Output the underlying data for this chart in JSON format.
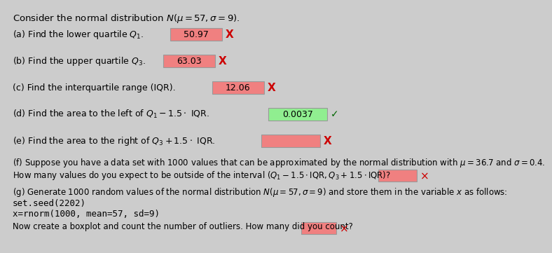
{
  "background_color": "#cccccc",
  "title": "Consider the normal distribution $N(\\mu = 57, \\sigma = 9)$.",
  "items": [
    {
      "prefix": "(a) Find the lower quartile $Q_1$.",
      "answer": "50.97",
      "box_color": "#f08080",
      "check": "X",
      "check_color": "#cc0000",
      "box_width": 0.14
    },
    {
      "prefix": "(b) Find the upper quartile $Q_3$.",
      "answer": "63.03",
      "box_color": "#f08080",
      "check": "X",
      "check_color": "#cc0000",
      "box_width": 0.14
    },
    {
      "prefix": "(c) Find the interquartile range (IQR).",
      "answer": "12.06",
      "box_color": "#f08080",
      "check": "X",
      "check_color": "#cc0000",
      "box_width": 0.14
    },
    {
      "prefix": "(d) Find the area to the left of $Q_1 - 1.5 \\cdot$ IQR.",
      "answer": "0.0037",
      "box_color": "#90ee90",
      "check": "✓",
      "check_color": "#006600",
      "box_width": 0.16
    },
    {
      "prefix": "(e) Find the area to the right of $Q_3 + 1.5 \\cdot$ IQR.",
      "answer": "",
      "box_color": "#f08080",
      "check": "X",
      "check_color": "#cc0000",
      "box_width": 0.16
    }
  ],
  "line_f1": "(f) Suppose you have a data set with 1000 values that can be approximated by the normal distribution with $\\mu = 36.7$ and $\\sigma = 0.4$.",
  "line_f2": "How many values do you expect to be outside of the interval $(Q_1 - 1.5 \\cdot \\mathrm{IQR}, Q_3 + 1.5 \\cdot \\mathrm{IQR})$?",
  "line_f2_box_color": "#f08080",
  "line_f2_check": "X",
  "line_f2_check_color": "#cc0000",
  "line_g1": "(g) Generate 1000 random values of the normal distribution $N(\\mu = 57, \\sigma = 9)$ and store them in the variable $x$ as follows:",
  "code1": "set.seed(2202)",
  "code2": "x=rnorm(1000, mean=57, sd=9)",
  "line_g2": "Now create a boxplot and count the number of outliers. How many did you count?",
  "line_g2_box_color": "#f08080",
  "line_g2_check": "X",
  "line_g2_check_color": "#cc0000",
  "fontsize": 9,
  "title_fontsize": 9.5
}
